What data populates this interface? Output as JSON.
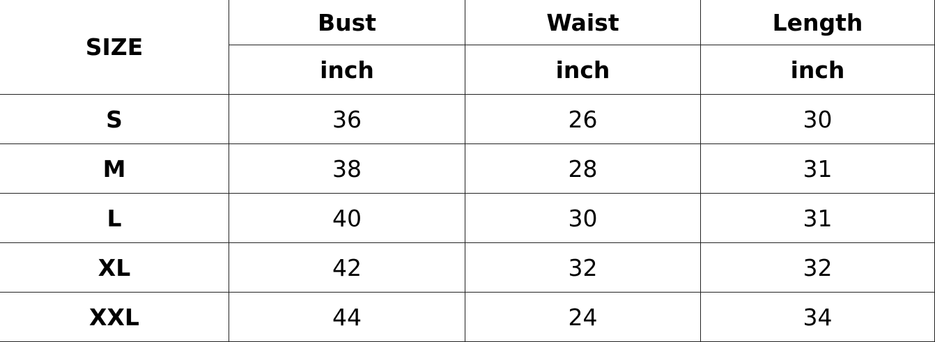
{
  "table": {
    "size_header": "SIZE",
    "columns": [
      {
        "name": "Bust",
        "unit": "inch"
      },
      {
        "name": "Waist",
        "unit": "inch"
      },
      {
        "name": "Length",
        "unit": "inch"
      }
    ],
    "rows": [
      {
        "size": "S",
        "values": [
          "36",
          "26",
          "30"
        ]
      },
      {
        "size": "M",
        "values": [
          "38",
          "28",
          "31"
        ]
      },
      {
        "size": "L",
        "values": [
          "40",
          "30",
          "31"
        ]
      },
      {
        "size": "XL",
        "values": [
          "42",
          "32",
          "32"
        ]
      },
      {
        "size": "XXL",
        "values": [
          "44",
          "24",
          "34"
        ]
      }
    ]
  }
}
